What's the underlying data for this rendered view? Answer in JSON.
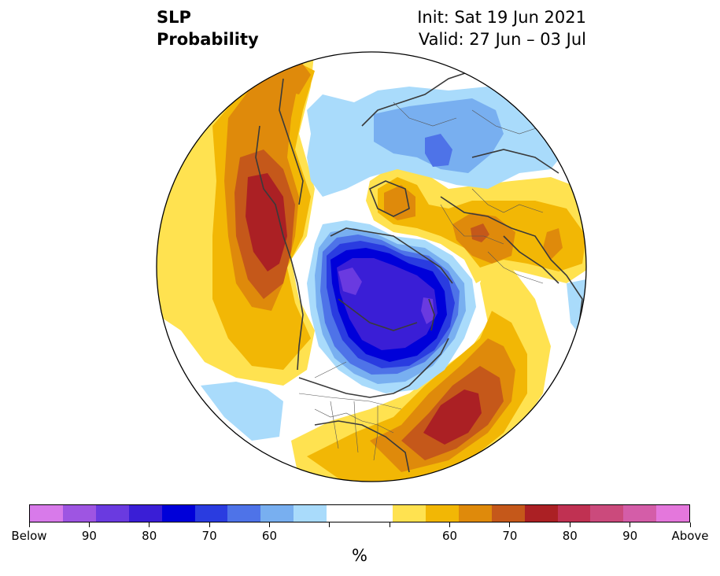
{
  "header": {
    "variable": "SLP",
    "product": "Probability",
    "init": "Init: Sat 19 Jun 2021",
    "valid": "Valid: 27 Jun – 03 Jul"
  },
  "map": {
    "projection": "north-polar-stereographic",
    "coastline_color": "#3a3a3a",
    "anomalies": [
      {
        "region": "North Pacific / Alaska",
        "category": "Above",
        "max_level": 80
      },
      {
        "region": "Northeast Pacific",
        "category": "Above",
        "max_level": 60
      },
      {
        "region": "Western Atlantic / US East Coast",
        "category": "Above",
        "max_level": 80
      },
      {
        "region": "Europe",
        "category": "Above",
        "max_level": 70
      },
      {
        "region": "Scandinavia / Barents Sea",
        "category": "Above",
        "max_level": 65
      },
      {
        "region": "Western Russia / Siberia",
        "category": "Below",
        "max_level": 75
      },
      {
        "region": "Arctic Ocean / Canadian Arctic",
        "category": "Below",
        "max_level": 90
      },
      {
        "region": "Subtropical Pacific",
        "category": "Below",
        "max_level": 60
      }
    ]
  },
  "colorbar": {
    "colors": [
      "#d87aea",
      "#9e55e2",
      "#6a3ae0",
      "#3a1ed6",
      "#0000d9",
      "#2a3ce0",
      "#4e73e8",
      "#78aff0",
      "#a9dbfb",
      "#ffffff",
      "#ffffff",
      "#ffe250",
      "#f2b705",
      "#df8a0b",
      "#c5581a",
      "#ab2024",
      "#c03152",
      "#cb4a7c",
      "#d45da8",
      "#e477dc"
    ],
    "tick_labels": [
      "Below",
      "90",
      "80",
      "70",
      "60",
      "",
      "",
      "60",
      "70",
      "80",
      "90",
      "Above"
    ],
    "unit": "%"
  }
}
